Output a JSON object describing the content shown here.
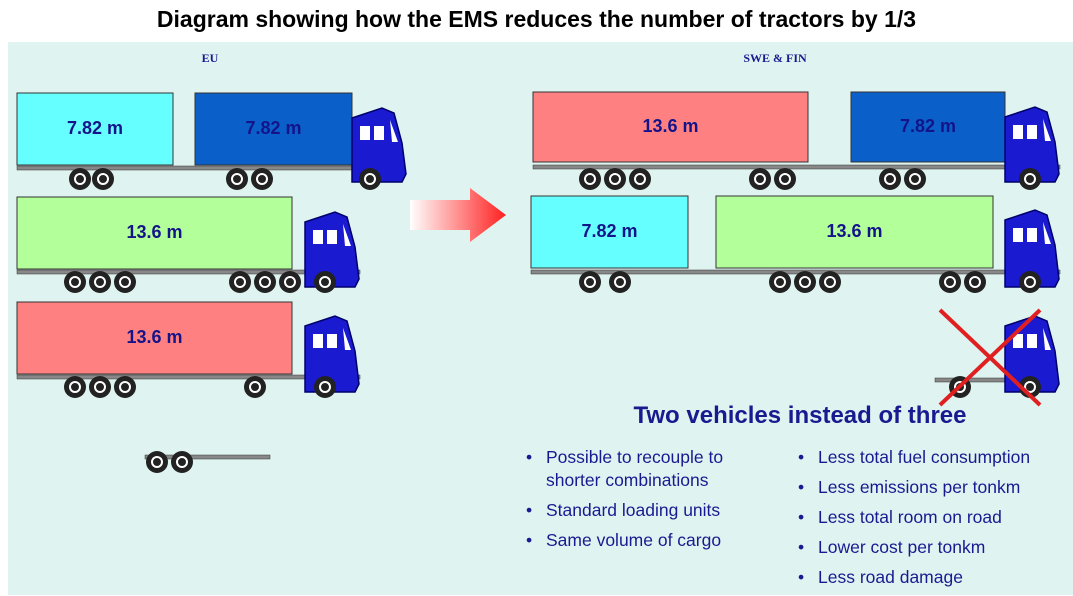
{
  "title": "Diagram showing how the EMS reduces the number of tractors by 1/3",
  "eu": {
    "label": "EU",
    "units": [
      "7.82 m",
      "7.82 m",
      "13.6 m",
      "13.6 m"
    ]
  },
  "swe_fin": {
    "label": "SWE & FIN",
    "units": [
      "13.6 m",
      "7.82 m",
      "7.82 m",
      "13.6 m"
    ]
  },
  "summary": {
    "heading": "Two vehicles instead of three",
    "left_bullets": [
      "Possible to recouple to shorter combinations",
      "Standard loading units",
      "Same volume of cargo"
    ],
    "right_bullets": [
      "Less total fuel consumption",
      "Less emissions per tonkm",
      "Less total room on road",
      "Lower cost per tonkm",
      "Less road damage"
    ]
  }
}
